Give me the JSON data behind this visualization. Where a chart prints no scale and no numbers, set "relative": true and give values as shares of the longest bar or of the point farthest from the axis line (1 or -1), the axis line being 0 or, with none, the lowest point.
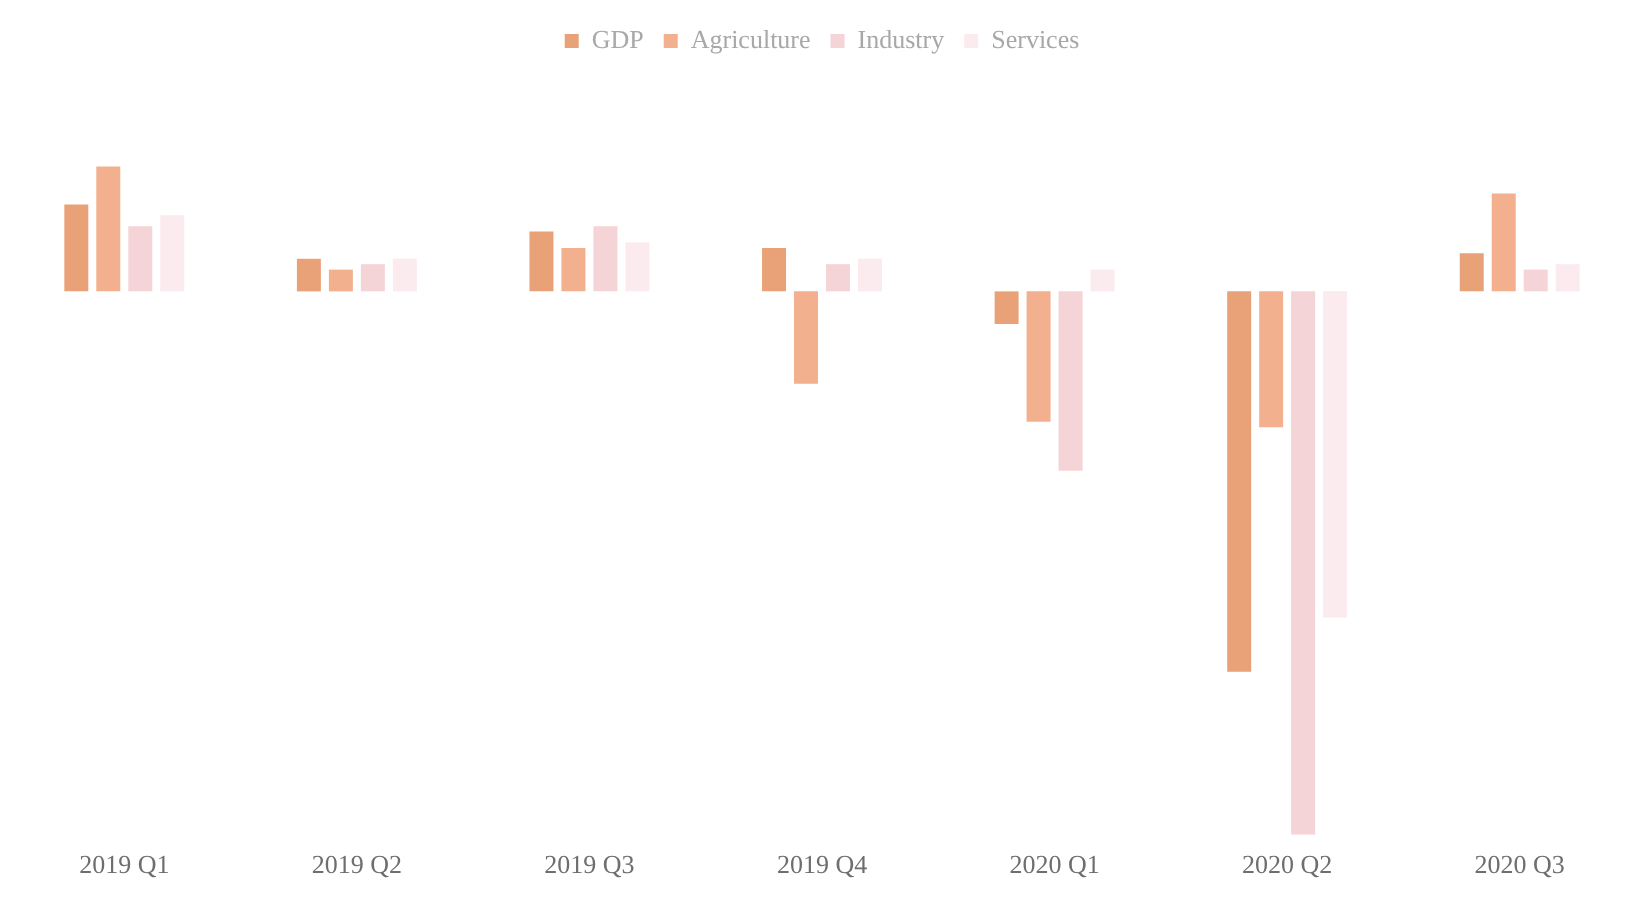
{
  "chart_data": {
    "type": "bar",
    "relative": true,
    "legend": "top",
    "grid": false,
    "categories": [
      "2019 Q1",
      "2019 Q2",
      "2019 Q3",
      "2019 Q4",
      "2020 Q1",
      "2020 Q2",
      "2020 Q3"
    ],
    "series": [
      {
        "name": "GDP",
        "color": "#e9a277",
        "values": [
          0.16,
          0.06,
          0.11,
          0.08,
          -0.06,
          -0.7,
          0.07
        ]
      },
      {
        "name": "Agriculture",
        "color": "#f2b08e",
        "values": [
          0.23,
          0.04,
          0.08,
          -0.17,
          -0.24,
          -0.25,
          0.18
        ]
      },
      {
        "name": "Industry",
        "color": "#f4d4d6",
        "values": [
          0.12,
          0.05,
          0.12,
          0.05,
          -0.33,
          -1,
          0.04
        ]
      },
      {
        "name": "Services",
        "color": "#fbeaee",
        "values": [
          0.14,
          0.06,
          0.09,
          0.06,
          0.04,
          -0.6,
          0.05
        ]
      }
    ]
  }
}
